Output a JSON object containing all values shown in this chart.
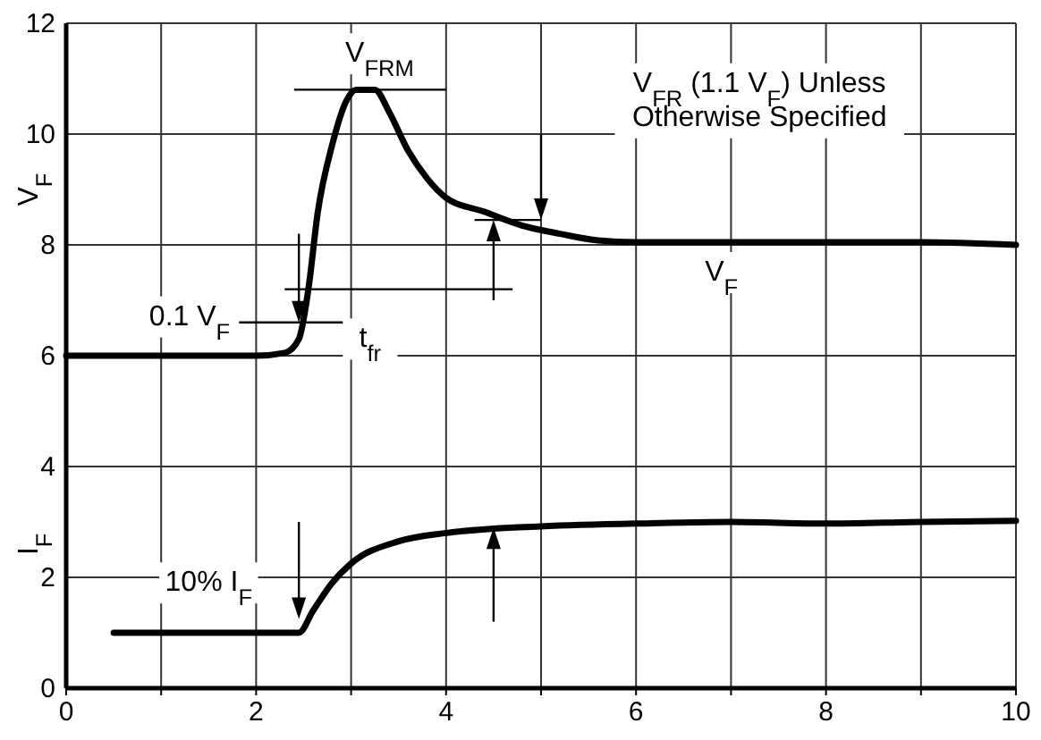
{
  "chart_data": {
    "type": "line",
    "ylabel": "V$_{F}$",
    "xlim": [
      0,
      10
    ],
    "ylim": [
      0,
      12
    ],
    "xticks": [
      0,
      {
        "value": 1,
        "label": null
      },
      2,
      {
        "value": 3,
        "label": null
      },
      4,
      {
        "value": 5,
        "label": null
      },
      6,
      {
        "value": 7,
        "label": null
      },
      8,
      {
        "value": 9,
        "label": null
      },
      10
    ],
    "yticks": [
      0,
      2,
      4,
      6,
      8,
      10,
      12
    ],
    "grid": true,
    "line_style": "solid",
    "marker": "none",
    "series": [
      {
        "color": "#000000",
        "x": [
          0,
          1,
          2,
          2.3,
          2.45,
          2.55,
          2.65,
          2.8,
          2.95,
          3.05,
          3.25,
          3.4,
          3.6,
          3.8,
          4.0,
          4.4,
          4.8,
          5.2,
          5.6,
          6,
          7,
          8,
          9,
          10
        ],
        "values": [
          6.0,
          6.0,
          6.0,
          6.05,
          6.3,
          7.2,
          8.6,
          9.8,
          10.6,
          10.8,
          10.8,
          10.4,
          9.7,
          9.2,
          8.85,
          8.6,
          8.35,
          8.2,
          8.08,
          8.05,
          8.05,
          8.05,
          8.05,
          8.0
        ]
      },
      {
        "color": "#000000",
        "x": [
          0.5,
          2.45,
          2.6,
          2.8,
          3,
          3.5,
          4,
          4.5,
          5,
          6,
          7,
          8,
          9,
          10
        ],
        "values": [
          1,
          1,
          1.4,
          1.9,
          2.25,
          2.65,
          2.8,
          2.88,
          2.92,
          2.97,
          3.0,
          2.97,
          3.0,
          3.02
        ]
      }
    ],
    "annotations": [
      "V$_{FRM}$",
      "V$_{FR}$ (1.1 V$_{F}$) Unless\nOtherwise Specified",
      "0.1 V$_{F}$",
      "t$_{fr}$",
      "V$_{F}$",
      "10% I$_{F}$",
      "I$_{F}$"
    ]
  }
}
